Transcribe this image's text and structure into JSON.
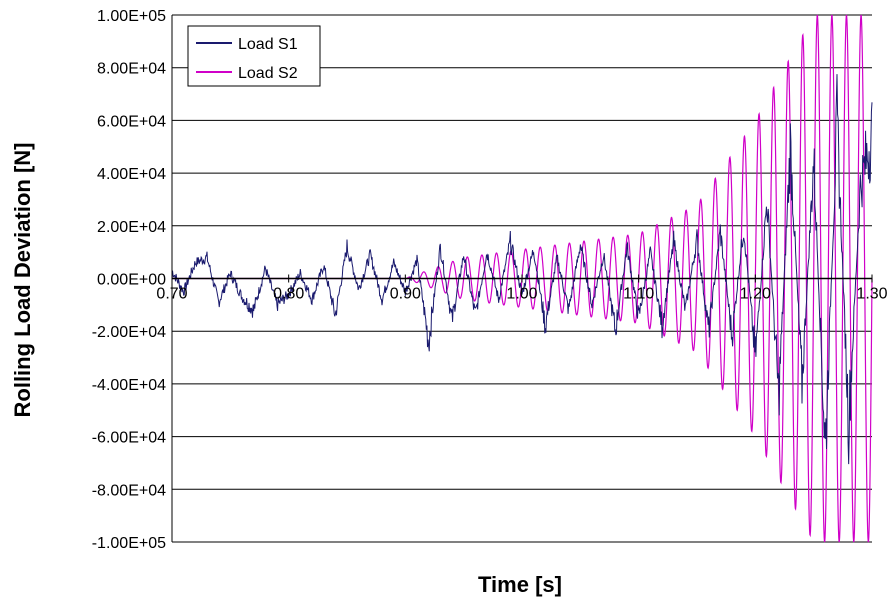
{
  "chart_data": {
    "type": "line",
    "title": "",
    "xlabel": "Time [s]",
    "ylabel": "Rolling Load Deviation [N]",
    "xlim": [
      0.7,
      1.3
    ],
    "ylim": [
      -100000,
      100000
    ],
    "x_ticks": [
      "0.70",
      "0.80",
      "0.90",
      "1.00",
      "1.10",
      "1.20",
      "1.30"
    ],
    "y_ticks": [
      "1.00E+05",
      "8.00E+04",
      "6.00E+04",
      "4.00E+04",
      "2.00E+04",
      "0.00E+00",
      "-2.00E+04",
      "-4.00E+04",
      "-6.00E+04",
      "-8.00E+04",
      "-1.00E+05"
    ],
    "grid": "horizontal",
    "legend_position": "top-left",
    "series": [
      {
        "name": "Load S1",
        "color": "#1a1a6e",
        "x": [
          0.7,
          0.71,
          0.72,
          0.73,
          0.74,
          0.75,
          0.76,
          0.77,
          0.78,
          0.79,
          0.8,
          0.81,
          0.82,
          0.83,
          0.84,
          0.85,
          0.86,
          0.87,
          0.88,
          0.89,
          0.9,
          0.91,
          0.92,
          0.93,
          0.94,
          0.95,
          0.96,
          0.97,
          0.98,
          0.99,
          1.0,
          1.01,
          1.02,
          1.03,
          1.04,
          1.05,
          1.06,
          1.07,
          1.08,
          1.09,
          1.1,
          1.11,
          1.12,
          1.13,
          1.14,
          1.15,
          1.16,
          1.17,
          1.18,
          1.19,
          1.2,
          1.21,
          1.22,
          1.23,
          1.24,
          1.25,
          1.26,
          1.27,
          1.28,
          1.29,
          1.3
        ],
        "y": [
          3000,
          -5000,
          6000,
          8000,
          -9000,
          2000,
          -7000,
          -12000,
          4000,
          -10000,
          -6000,
          2000,
          -8000,
          5000,
          -14000,
          12000,
          -4000,
          9000,
          -8000,
          6000,
          -5000,
          7000,
          -24000,
          12000,
          -16000,
          9000,
          -14000,
          10000,
          -8000,
          14000,
          -6000,
          11000,
          -18000,
          8000,
          -12000,
          13000,
          -10000,
          9000,
          -20000,
          12000,
          -15000,
          10000,
          -18000,
          14000,
          -12000,
          15000,
          -20000,
          18000,
          -22000,
          20000,
          -30000,
          30000,
          -45000,
          50000,
          -40000,
          45000,
          -65000,
          60000,
          -55000,
          35000,
          55000
        ]
      },
      {
        "name": "Load S2",
        "color": "#d000c8",
        "x": [
          0.7,
          0.8,
          0.9,
          0.95,
          1.0,
          1.05,
          1.1,
          1.15,
          1.2,
          1.25,
          1.3
        ],
        "y": [
          0,
          0,
          0,
          8000,
          11000,
          14000,
          17000,
          28000,
          60000,
          100000,
          -100000
        ]
      }
    ]
  }
}
